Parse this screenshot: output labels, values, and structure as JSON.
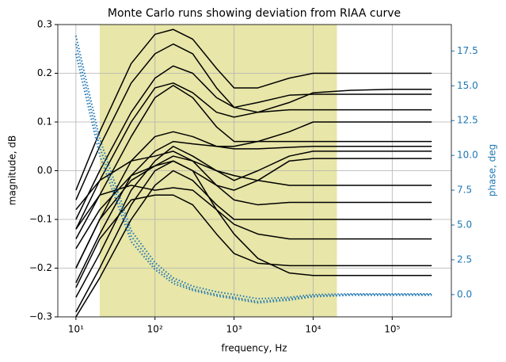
{
  "chart_data": {
    "type": "line",
    "title": "Monte Carlo runs showing deviation from RIAA curve",
    "xlabel": "frequency, Hz",
    "ylabel": "magnitude, dB",
    "y2label": "phase, deg",
    "xscale": "log",
    "grid": true,
    "xlim": [
      5.9,
      560000
    ],
    "ylim": [
      -0.3,
      0.3
    ],
    "y2lim": [
      -1.6,
      19.4
    ],
    "xticks": [
      {
        "value": 10,
        "label": "10¹"
      },
      {
        "value": 100,
        "label": "10²"
      },
      {
        "value": 1000,
        "label": "10³"
      },
      {
        "value": 10000,
        "label": "10⁴"
      },
      {
        "value": 100000,
        "label": "10⁵"
      }
    ],
    "yticks": [
      {
        "value": -0.3,
        "label": "−0.3"
      },
      {
        "value": -0.2,
        "label": "−0.2"
      },
      {
        "value": -0.1,
        "label": "−0.1"
      },
      {
        "value": 0,
        "label": "0.0"
      },
      0.1,
      0.2,
      0.3
    ],
    "y2ticks": [
      {
        "value": 0,
        "label": "0.0"
      },
      2.5,
      {
        "value": 5,
        "label": "5.0"
      },
      7.5,
      {
        "value": 10,
        "label": "10.0"
      },
      12.5,
      {
        "value": 15,
        "label": "15.0"
      },
      17.5
    ],
    "y2color": "#1f77b4",
    "span": [
      20,
      20000
    ],
    "span_color": "#e8e6a8",
    "x": [
      10,
      20,
      50,
      100,
      170,
      300,
      600,
      1000,
      2000,
      5000,
      10000,
      30000,
      100000,
      316000
    ],
    "series": [
      {
        "color": "#000000",
        "values": [
          -0.04,
          0.08,
          0.22,
          0.28,
          0.29,
          0.27,
          0.21,
          0.17,
          0.17,
          0.19,
          0.2,
          0.2,
          0.2,
          0.2
        ]
      },
      {
        "color": "#000000",
        "values": [
          -0.06,
          0.05,
          0.18,
          0.24,
          0.26,
          0.24,
          0.17,
          0.13,
          0.12,
          0.14,
          0.16,
          0.165,
          0.167,
          0.167
        ]
      },
      {
        "color": "#000000",
        "values": [
          -0.1,
          0.0,
          0.12,
          0.19,
          0.215,
          0.2,
          0.15,
          0.13,
          0.14,
          0.155,
          0.157,
          0.157,
          0.157,
          0.157
        ]
      },
      {
        "color": "#000000",
        "values": [
          -0.12,
          -0.02,
          0.1,
          0.17,
          0.18,
          0.16,
          0.12,
          0.11,
          0.12,
          0.125,
          0.125,
          0.125,
          0.125,
          0.125
        ]
      },
      {
        "color": "#000000",
        "values": [
          -0.14,
          -0.05,
          0.07,
          0.15,
          0.175,
          0.15,
          0.09,
          0.06,
          0.06,
          0.08,
          0.1,
          0.1,
          0.1,
          0.1
        ]
      },
      {
        "color": "#000000",
        "values": [
          -0.2,
          -0.1,
          0.02,
          0.07,
          0.08,
          0.07,
          0.05,
          0.05,
          0.06,
          0.06,
          0.06,
          0.06,
          0.06,
          0.06
        ]
      },
      {
        "color": "#000000",
        "values": [
          -0.23,
          -0.13,
          -0.01,
          0.04,
          0.06,
          0.055,
          0.05,
          0.045,
          0.045,
          0.048,
          0.05,
          0.05,
          0.05,
          0.05
        ]
      },
      {
        "color": "#000000",
        "values": [
          -0.26,
          -0.17,
          -0.04,
          0.02,
          0.05,
          0.03,
          0.0,
          -0.02,
          0.0,
          0.03,
          0.04,
          0.04,
          0.04,
          0.04
        ]
      },
      {
        "color": "#000000",
        "values": [
          -0.29,
          -0.2,
          -0.07,
          0.0,
          0.02,
          0.0,
          -0.03,
          -0.04,
          -0.02,
          0.02,
          0.025,
          0.025,
          0.025,
          0.025
        ]
      },
      {
        "color": "#000000",
        "values": [
          -0.3,
          -0.22,
          -0.1,
          -0.03,
          0.0,
          -0.02,
          -0.07,
          -0.1,
          -0.1,
          -0.1,
          -0.1,
          -0.1,
          -0.1,
          -0.1
        ]
      },
      {
        "color": "#000000",
        "values": [
          -0.24,
          -0.14,
          -0.06,
          -0.05,
          -0.05,
          -0.07,
          -0.13,
          -0.17,
          -0.19,
          -0.195,
          -0.195,
          -0.195,
          -0.195,
          -0.195
        ]
      },
      {
        "color": "#000000",
        "values": [
          -0.2,
          -0.1,
          -0.02,
          0.01,
          0.02,
          0.0,
          -0.08,
          -0.13,
          -0.18,
          -0.21,
          -0.215,
          -0.215,
          -0.215,
          -0.215
        ]
      },
      {
        "color": "#000000",
        "values": [
          -0.12,
          -0.05,
          -0.03,
          -0.04,
          -0.035,
          -0.04,
          -0.08,
          -0.11,
          -0.13,
          -0.14,
          -0.14,
          -0.14,
          -0.14,
          -0.14
        ]
      },
      {
        "color": "#000000",
        "values": [
          -0.08,
          -0.02,
          0.02,
          0.03,
          0.04,
          0.02,
          -0.03,
          -0.06,
          -0.07,
          -0.065,
          -0.065,
          -0.065,
          -0.065,
          -0.065
        ]
      },
      {
        "color": "#000000",
        "values": [
          -0.16,
          -0.08,
          -0.01,
          0.01,
          0.03,
          0.02,
          0.0,
          -0.01,
          -0.02,
          -0.03,
          -0.03,
          -0.03,
          -0.03,
          -0.03
        ]
      },
      {
        "color": "#1f77b4",
        "axis": "y2",
        "linestyle": "dotted",
        "values": [
          18.6,
          11.2,
          4.6,
          2.3,
          1.2,
          0.6,
          0.2,
          0.0,
          -0.3,
          -0.2,
          0.0,
          0.05,
          0.05,
          0.05
        ]
      },
      {
        "color": "#1f77b4",
        "axis": "y2",
        "linestyle": "dotted",
        "values": [
          18.0,
          10.6,
          4.2,
          2.0,
          1.0,
          0.4,
          0.0,
          -0.2,
          -0.5,
          -0.3,
          -0.1,
          0.0,
          0.0,
          0.0
        ]
      },
      {
        "color": "#1f77b4",
        "axis": "y2",
        "linestyle": "dotted",
        "values": [
          17.3,
          10.0,
          3.8,
          1.8,
          0.8,
          0.3,
          -0.1,
          -0.3,
          -0.6,
          -0.4,
          -0.15,
          -0.05,
          -0.05,
          -0.05
        ]
      }
    ]
  }
}
